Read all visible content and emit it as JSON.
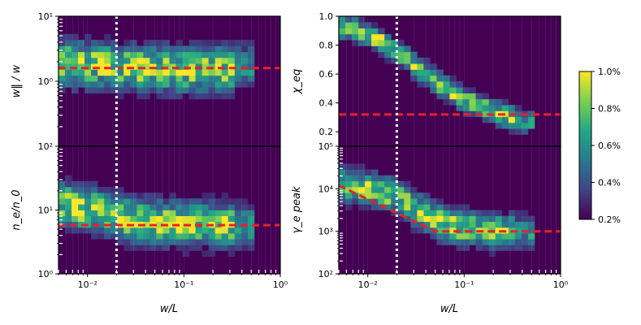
{
  "chart_data": {
    "type": "heatmap",
    "x_axis": {
      "label": "w/L",
      "scale": "log",
      "range": [
        0.005,
        1
      ],
      "tick_values": [
        0.01,
        0.1,
        1
      ],
      "tick_labels": [
        "10⁻²",
        "10⁻¹",
        "10⁰"
      ]
    },
    "vline_x": 0.02,
    "colormap": "viridis",
    "colorbar": {
      "range": [
        0.002,
        0.01
      ],
      "tick_values": [
        0.002,
        0.004,
        0.006,
        0.008,
        0.01
      ],
      "tick_labels": [
        "0.2%",
        "0.4%",
        "0.6%",
        "0.8%",
        "1.0%"
      ],
      "colors": [
        "#440154",
        "#414487",
        "#2a788e",
        "#22a884",
        "#7ad151",
        "#fde725"
      ]
    },
    "background_color": "#440154",
    "reference_line_color": "#e8212a",
    "panels": [
      {
        "ylabel": "w‖ / w",
        "y_scale": "log",
        "y_range": [
          0.1,
          10
        ],
        "y_tick_values": [
          1,
          10
        ],
        "y_tick_labels": [
          "10⁰",
          "10¹"
        ],
        "ref_line": {
          "x": [
            0.005,
            1
          ],
          "y": [
            1.6,
            1.6
          ]
        },
        "ridge": {
          "x": [
            0.006,
            0.009,
            0.012,
            0.016,
            0.02,
            0.025,
            0.03,
            0.04,
            0.05,
            0.07,
            0.1,
            0.15,
            0.2,
            0.3,
            0.4
          ],
          "y": [
            1.9,
            1.85,
            1.8,
            1.75,
            1.7,
            1.65,
            1.6,
            1.6,
            1.55,
            1.55,
            1.5,
            1.5,
            1.5,
            1.6,
            1.7
          ],
          "spread": 0.22
        }
      },
      {
        "ylabel": "χ_eq",
        "y_scale": "linear",
        "y_range": [
          0.1,
          1.0
        ],
        "y_tick_values": [
          0.2,
          0.4,
          0.6,
          0.8,
          1.0
        ],
        "y_tick_labels": [
          "0.2",
          "0.4",
          "0.6",
          "0.8",
          "1.0"
        ],
        "ref_line": {
          "x": [
            0.005,
            1
          ],
          "y": [
            0.32,
            0.32
          ]
        },
        "ridge": {
          "x": [
            0.006,
            0.008,
            0.01,
            0.013,
            0.016,
            0.02,
            0.025,
            0.03,
            0.04,
            0.05,
            0.07,
            0.1,
            0.15,
            0.2,
            0.3,
            0.4
          ],
          "y": [
            0.93,
            0.9,
            0.87,
            0.84,
            0.8,
            0.76,
            0.72,
            0.66,
            0.6,
            0.55,
            0.48,
            0.42,
            0.38,
            0.34,
            0.3,
            0.27
          ],
          "spread": 0.05
        }
      },
      {
        "ylabel": "n_e/n_0",
        "y_scale": "log",
        "y_range": [
          1,
          100
        ],
        "y_tick_values": [
          1,
          10,
          100
        ],
        "y_tick_labels": [
          "10⁰",
          "10¹",
          "10²"
        ],
        "ref_line": {
          "x": [
            0.005,
            1
          ],
          "y": [
            5.8,
            5.8
          ]
        },
        "ridge": {
          "x": [
            0.006,
            0.008,
            0.01,
            0.013,
            0.016,
            0.02,
            0.025,
            0.03,
            0.04,
            0.05,
            0.07,
            0.1,
            0.15,
            0.2,
            0.3,
            0.4
          ],
          "y": [
            12,
            11,
            10,
            10,
            9,
            8,
            7.5,
            7,
            6.8,
            6.5,
            6.2,
            6,
            6,
            5.8,
            5.8,
            5.8
          ],
          "spread": 0.22
        }
      },
      {
        "ylabel": "γ_e peak",
        "y_scale": "log",
        "y_range": [
          100,
          100000
        ],
        "y_tick_values": [
          100,
          1000,
          10000,
          100000
        ],
        "y_tick_labels": [
          "10²",
          "10³",
          "10⁴",
          "10⁵"
        ],
        "ref_line": {
          "x": [
            0.005,
            0.05,
            1
          ],
          "y": [
            12000,
            1000,
            1000
          ]
        },
        "ridge": {
          "x": [
            0.006,
            0.008,
            0.01,
            0.013,
            0.016,
            0.02,
            0.025,
            0.03,
            0.04,
            0.05,
            0.07,
            0.1,
            0.15,
            0.2,
            0.3,
            0.4
          ],
          "y": [
            13000,
            11000,
            10000,
            9000,
            8000,
            7000,
            5000,
            3500,
            2500,
            1800,
            1400,
            1200,
            1100,
            1000,
            1000,
            1000
          ],
          "spread": 0.25
        }
      }
    ]
  }
}
